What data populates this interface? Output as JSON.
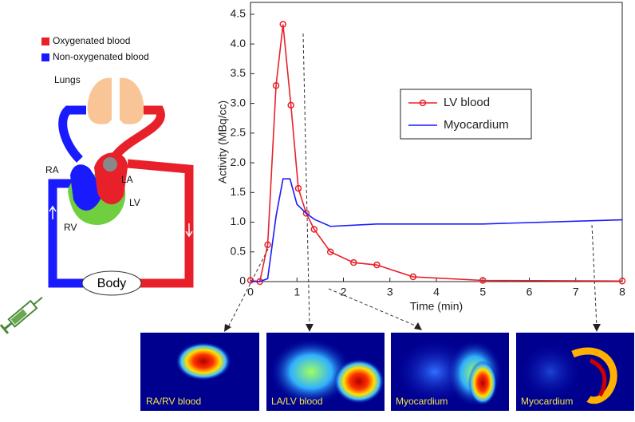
{
  "chart_data": {
    "type": "line",
    "x_label": "Time (min)",
    "y_label": "Activity (MBq/cc)",
    "xlim": [
      0,
      8
    ],
    "ylim": [
      0,
      4.7
    ],
    "xticks": [
      0,
      1,
      2,
      3,
      4,
      5,
      6,
      7,
      8
    ],
    "yticks": [
      0,
      0.5,
      {
        "value": 1,
        "label": "1.0"
      },
      1.5,
      {
        "value": 2,
        "label": "2.0"
      },
      2.5,
      {
        "value": 3,
        "label": "3.0"
      },
      3.5,
      {
        "value": 4,
        "label": "4.0"
      },
      4.5
    ],
    "legend": "right",
    "series": [
      {
        "name": "LV blood",
        "color": "#e8202a",
        "marker": "circle",
        "x": [
          0,
          0.2,
          0.37,
          0.55,
          0.7,
          0.87,
          1.03,
          1.2,
          1.37,
          1.72,
          2.22,
          2.72,
          3.5,
          5,
          8
        ],
        "values": [
          0.02,
          0,
          0.62,
          3.3,
          4.33,
          2.97,
          1.57,
          1.15,
          0.88,
          0.5,
          0.32,
          0.28,
          0.08,
          0.02,
          0.01
        ]
      },
      {
        "name": "Myocardium",
        "color": "#1a1aff",
        "x": [
          0,
          0.2,
          0.37,
          0.55,
          0.7,
          0.85,
          1.0,
          1.2,
          1.37,
          1.72,
          2.72,
          5,
          8
        ],
        "values": [
          0,
          0,
          0.05,
          1.1,
          1.73,
          1.73,
          1.3,
          1.15,
          1.05,
          0.93,
          0.97,
          0.97,
          1.04
        ]
      }
    ]
  },
  "diagram": {
    "legend": [
      "Oxygenated blood",
      "Non-oxygenated blood"
    ],
    "labels": {
      "lungs": "Lungs",
      "ra": "RA",
      "la": "LA",
      "lv": "LV",
      "rv": "RV",
      "body": "Body"
    }
  },
  "images": [
    {
      "label": "RA/RV blood"
    },
    {
      "label": "LA/LV blood"
    },
    {
      "label": "Myocardium"
    },
    {
      "label": "Myocardium"
    }
  ]
}
